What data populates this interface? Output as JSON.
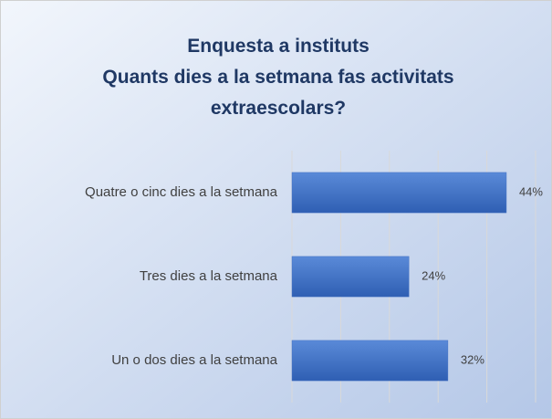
{
  "chart_data": {
    "type": "barh",
    "title": "Enquesta a instituts",
    "subtitle": "Quants dies a la setmana fas activitats extraescolars?",
    "categories": [
      "Quatre o cinc dies a la setmana",
      "Tres dies a la setmana",
      "Un o dos dies a la setmana"
    ],
    "values": [
      44,
      24,
      32
    ],
    "value_labels": [
      "44%",
      "24%",
      "32%"
    ],
    "color": "#4472c4",
    "xlim": [
      0,
      50
    ],
    "xticks": [
      0,
      10,
      20,
      30,
      40,
      50
    ],
    "grid": true
  }
}
